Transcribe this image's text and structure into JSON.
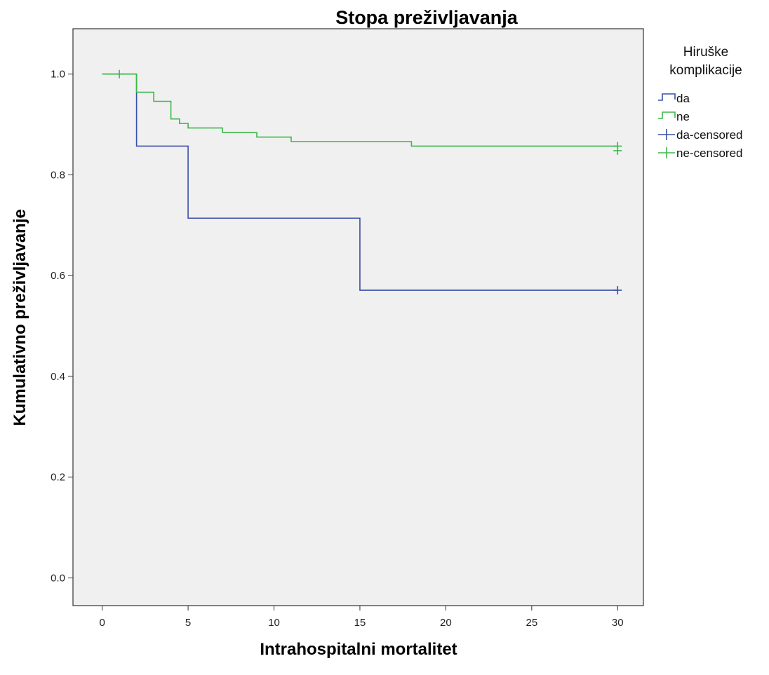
{
  "chart_data": {
    "type": "line",
    "subtype": "kaplan-meier step",
    "title": "Stopa preživljavanja",
    "xlabel": "Intrahospitalni mortalitet",
    "ylabel": "Kumulativno preživljavanje",
    "xlim": [
      -1.7,
      31.5
    ],
    "ylim": [
      -0.055,
      1.09
    ],
    "xticks": [
      0,
      5,
      10,
      15,
      20,
      25,
      30
    ],
    "xtick_labels": [
      "0",
      "5",
      "10",
      "15",
      "20",
      "25",
      "30"
    ],
    "yticks": [
      0.0,
      0.2,
      0.4,
      0.6,
      0.8,
      1.0
    ],
    "ytick_labels": [
      "0.0",
      "0.2",
      "0.4",
      "0.6",
      "0.8",
      "1.0"
    ],
    "grid": false,
    "background_color": "#f0f0f0",
    "legend": {
      "title": "Hiruške komplikacije",
      "title_lines": [
        "Hiruške",
        "komplikacije"
      ],
      "placement": "right-top",
      "entries": [
        {
          "label": "da",
          "marker": "step",
          "color": "#3a4fa8"
        },
        {
          "label": "ne",
          "marker": "step",
          "color": "#3cb84a"
        },
        {
          "label": "da-censored",
          "marker": "plus",
          "color": "#3a4fa8"
        },
        {
          "label": "ne-censored",
          "marker": "plus",
          "color": "#3cb84a"
        }
      ]
    },
    "series": [
      {
        "name": "da",
        "color": "#3a4fa8",
        "x": [
          0,
          2,
          5,
          15,
          30
        ],
        "y": [
          1.0,
          0.857,
          0.714,
          0.571,
          0.571
        ],
        "censored": [
          {
            "x": 30,
            "y": 0.571
          }
        ]
      },
      {
        "name": "ne",
        "color": "#3cb84a",
        "x": [
          0,
          2,
          2.5,
          3,
          4,
          4.5,
          5,
          7,
          9,
          11,
          18,
          30
        ],
        "y": [
          1.0,
          0.964,
          0.964,
          0.946,
          0.911,
          0.902,
          0.893,
          0.884,
          0.875,
          0.866,
          0.857,
          0.857
        ],
        "censored": [
          {
            "x": 1,
            "y": 1.0
          },
          {
            "x": 30,
            "y": 0.848
          },
          {
            "x": 30,
            "y": 0.857
          }
        ]
      }
    ]
  }
}
